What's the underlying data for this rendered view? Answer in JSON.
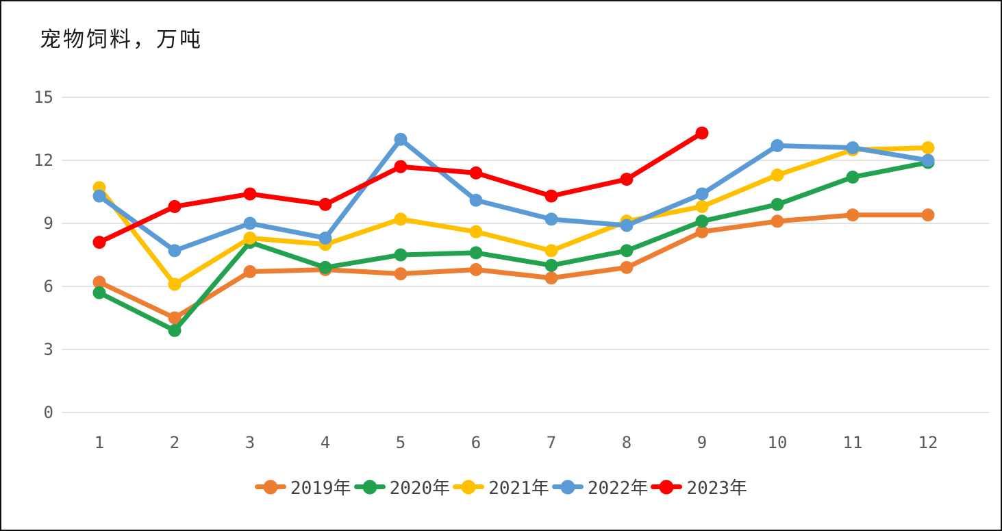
{
  "chart_data": {
    "type": "line",
    "title": "宠物饲料，万吨",
    "xlabel": "",
    "ylabel": "",
    "categories": [
      "1",
      "2",
      "3",
      "4",
      "5",
      "6",
      "7",
      "8",
      "9",
      "10",
      "11",
      "12"
    ],
    "y_ticks": [
      0,
      3,
      6,
      9,
      12,
      15
    ],
    "ylim": [
      0,
      15
    ],
    "grid": "horizontal-only",
    "grid_color": "#D9D9D9",
    "tick_label_color": "#595959",
    "legend_position": "bottom",
    "series": [
      {
        "name": "2019年",
        "color": "#ED7D31",
        "values": [
          6.2,
          4.5,
          6.7,
          6.8,
          6.6,
          6.8,
          6.4,
          6.9,
          8.6,
          9.1,
          9.4,
          9.4
        ]
      },
      {
        "name": "2020年",
        "color": "#22A24E",
        "values": [
          5.7,
          3.9,
          8.1,
          6.9,
          7.5,
          7.6,
          7.0,
          7.7,
          9.1,
          9.9,
          11.2,
          11.9
        ]
      },
      {
        "name": "2021年",
        "color": "#FFC000",
        "values": [
          10.7,
          6.1,
          8.3,
          8.0,
          9.2,
          8.6,
          7.7,
          9.1,
          9.8,
          11.3,
          12.5,
          12.6
        ]
      },
      {
        "name": "2022年",
        "color": "#5B9BD5",
        "values": [
          10.3,
          7.7,
          9.0,
          8.3,
          13.0,
          10.1,
          9.2,
          8.9,
          10.4,
          12.7,
          12.6,
          12.0
        ]
      },
      {
        "name": "2023年",
        "color": "#FF0000",
        "values": [
          8.1,
          9.8,
          10.4,
          9.9,
          11.7,
          11.4,
          10.3,
          11.1,
          13.3,
          null,
          null,
          null
        ]
      }
    ]
  }
}
